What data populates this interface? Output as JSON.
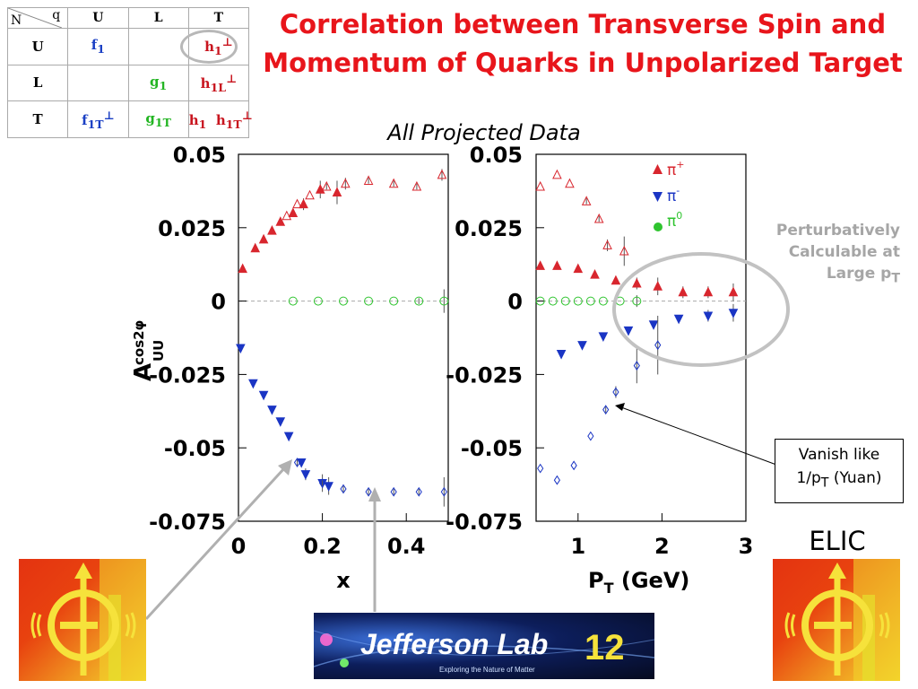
{
  "title": {
    "line1": "Correlation between Transverse Spin and",
    "line2": "Momentum of Quarks in Unpolarized Target"
  },
  "subtitle": "All Projected Data",
  "table": {
    "corner_n": "N",
    "corner_q": "q",
    "col_headers": [
      "U",
      "L",
      "T"
    ],
    "rows": [
      {
        "label": "U",
        "cells": [
          {
            "base": "f",
            "sub": "1",
            "sup": "",
            "color": "blue"
          },
          null,
          {
            "base": "h",
            "sub": "1",
            "sup": "⊥",
            "color": "red"
          }
        ]
      },
      {
        "label": "L",
        "cells": [
          null,
          {
            "base": "g",
            "sub": "1",
            "sup": "",
            "color": "green"
          },
          {
            "base": "h",
            "sub": "1L",
            "sup": "⊥",
            "color": "red"
          }
        ]
      },
      {
        "label": "T",
        "cells": [
          {
            "base": "f",
            "sub": "1T",
            "sup": "⊥",
            "color": "blue"
          },
          {
            "base": "g",
            "sub": "1T",
            "sup": "",
            "color": "green"
          },
          {
            "base": "h",
            "sub": "1",
            "sup": "",
            "extra": {
              "base": "h",
              "sub": "1T",
              "sup": "⊥"
            },
            "color": "red"
          }
        ]
      }
    ]
  },
  "annotations": {
    "perturbative": {
      "line1": "Perturbatively",
      "line2": "Calculable at",
      "line3": "Large p",
      "sub": "T"
    },
    "vanish": {
      "line1": "Vanish like",
      "line2": "1/p",
      "sub": "T",
      "tail": " (Yuan)"
    },
    "elic": "ELIC"
  },
  "logos": {
    "jlab": {
      "text": "Jefferson Lab",
      "number": "12",
      "tagline": "Exploring the Nature of Matter"
    }
  },
  "chart_data": [
    {
      "type": "scatter",
      "xlabel": "x",
      "ylabel": "A",
      "ylabel_sup": "cos2φ",
      "ylabel_sub": "UU",
      "xlim": [
        0,
        0.5
      ],
      "ylim": [
        -0.075,
        0.05
      ],
      "xticks": [
        "0",
        "0.2",
        "0.4"
      ],
      "yticks": [
        "0.05",
        "0.025",
        "0",
        "-0.025",
        "-0.05",
        "-0.075"
      ],
      "reference_line": 0,
      "series": [
        {
          "name": "π+",
          "color": "#d8262e",
          "marker": "triangle-up",
          "filled": true,
          "points": [
            [
              0.01,
              0.011
            ],
            [
              0.04,
              0.018
            ],
            [
              0.06,
              0.021
            ],
            [
              0.08,
              0.024
            ],
            [
              0.1,
              0.027
            ],
            [
              0.13,
              0.03
            ],
            [
              0.155,
              0.033
            ],
            [
              0.195,
              0.038
            ],
            [
              0.235,
              0.037
            ]
          ],
          "errors": [
            0.001,
            0.001,
            0.001,
            0.001,
            0.001,
            0.001,
            0.002,
            0.003,
            0.004
          ]
        },
        {
          "name": "π+ projected",
          "color": "#d8262e",
          "marker": "triangle-up",
          "filled": false,
          "points": [
            [
              0.115,
              0.029
            ],
            [
              0.14,
              0.033
            ],
            [
              0.17,
              0.036
            ],
            [
              0.21,
              0.039
            ],
            [
              0.255,
              0.04
            ],
            [
              0.31,
              0.041
            ],
            [
              0.37,
              0.04
            ],
            [
              0.425,
              0.039
            ],
            [
              0.485,
              0.043
            ]
          ],
          "errors": [
            0.0005,
            0.0005,
            0.0005,
            0.001,
            0.002,
            0.001,
            0.001,
            0.001,
            0.002
          ]
        },
        {
          "name": "π-",
          "color": "#1a35c4",
          "marker": "triangle-down",
          "filled": true,
          "points": [
            [
              0.005,
              -0.016
            ],
            [
              0.035,
              -0.028
            ],
            [
              0.06,
              -0.032
            ],
            [
              0.08,
              -0.037
            ],
            [
              0.1,
              -0.041
            ],
            [
              0.12,
              -0.046
            ],
            [
              0.15,
              -0.055
            ],
            [
              0.16,
              -0.059
            ],
            [
              0.2,
              -0.062
            ],
            [
              0.215,
              -0.063
            ]
          ],
          "errors": [
            0.001,
            0.001,
            0.001,
            0.001,
            0.001,
            0.001,
            0.001,
            0.002,
            0.003,
            0.003
          ]
        },
        {
          "name": "π- projected",
          "color": "#1a35c4",
          "marker": "diamond",
          "filled": false,
          "points": [
            [
              0.14,
              -0.055
            ],
            [
              0.2,
              -0.062
            ],
            [
              0.25,
              -0.064
            ],
            [
              0.31,
              -0.065
            ],
            [
              0.37,
              -0.065
            ],
            [
              0.43,
              -0.065
            ],
            [
              0.49,
              -0.065
            ]
          ],
          "errors": [
            0.001,
            0.001,
            0.001,
            0.001,
            0.001,
            0.001,
            0.005
          ]
        },
        {
          "name": "π0",
          "color": "#2fc42f",
          "marker": "circle",
          "filled": false,
          "points": [
            [
              0.13,
              0
            ],
            [
              0.19,
              0
            ],
            [
              0.25,
              0
            ],
            [
              0.31,
              0
            ],
            [
              0.37,
              0
            ],
            [
              0.43,
              0
            ],
            [
              0.49,
              0
            ]
          ],
          "errors": [
            0,
            0,
            0,
            0,
            0,
            0.001,
            0.004
          ]
        }
      ]
    },
    {
      "type": "scatter",
      "xlabel": "P",
      "xlabel_sub": "T",
      "xlabel_unit": " (GeV)",
      "xlim": [
        0.5,
        3.0
      ],
      "ylim": [
        -0.075,
        0.05
      ],
      "xticks": [
        "1",
        "2",
        "3"
      ],
      "yticks": [
        "0.05",
        "0.025",
        "0",
        "-0.025",
        "-0.05",
        "-0.075"
      ],
      "reference_line": 0,
      "legend": {
        "placement": "top-right",
        "entries": [
          {
            "label": "π",
            "sup": "+",
            "marker": "triangle-up",
            "color": "#d8262e"
          },
          {
            "label": "π",
            "sup": "-",
            "marker": "triangle-down",
            "color": "#1a35c4"
          },
          {
            "label": "π",
            "sup": "0",
            "marker": "circle-filled",
            "color": "#2fc42f"
          }
        ]
      },
      "series": [
        {
          "name": "π+",
          "color": "#d8262e",
          "marker": "triangle-up",
          "filled": true,
          "points": [
            [
              0.55,
              0.012
            ],
            [
              0.75,
              0.012
            ],
            [
              1.0,
              0.011
            ],
            [
              1.2,
              0.009
            ],
            [
              1.45,
              0.007
            ],
            [
              1.7,
              0.006
            ],
            [
              1.95,
              0.005
            ],
            [
              2.25,
              0.003
            ],
            [
              2.55,
              0.003
            ],
            [
              2.85,
              0.003
            ]
          ],
          "errors": [
            0.0005,
            0.0005,
            0.0005,
            0.001,
            0.001,
            0.002,
            0.003,
            0.002,
            0.002,
            0.003
          ]
        },
        {
          "name": "π+ projected",
          "color": "#d8262e",
          "marker": "triangle-up",
          "filled": false,
          "points": [
            [
              0.55,
              0.039
            ],
            [
              0.75,
              0.043
            ],
            [
              0.9,
              0.04
            ],
            [
              1.1,
              0.034
            ],
            [
              1.25,
              0.028
            ],
            [
              1.35,
              0.019
            ],
            [
              1.55,
              0.017
            ]
          ],
          "errors": [
            0.0005,
            0.0005,
            0.0005,
            0.001,
            0.001,
            0.002,
            0.005
          ]
        },
        {
          "name": "π-",
          "color": "#1a35c4",
          "marker": "triangle-down",
          "filled": true,
          "points": [
            [
              0.8,
              -0.018
            ],
            [
              1.05,
              -0.015
            ],
            [
              1.3,
              -0.012
            ],
            [
              1.6,
              -0.01
            ],
            [
              1.9,
              -0.008
            ],
            [
              2.2,
              -0.006
            ],
            [
              2.55,
              -0.005
            ],
            [
              2.85,
              -0.004
            ]
          ],
          "errors": [
            0.0005,
            0.0005,
            0.0005,
            0.001,
            0.001,
            0.001,
            0.002,
            0.003
          ]
        },
        {
          "name": "π- projected",
          "color": "#1a35c4",
          "marker": "diamond",
          "filled": false,
          "points": [
            [
              0.55,
              -0.057
            ],
            [
              0.75,
              -0.061
            ],
            [
              0.95,
              -0.056
            ],
            [
              1.15,
              -0.046
            ],
            [
              1.33,
              -0.037
            ],
            [
              1.45,
              -0.031
            ],
            [
              1.7,
              -0.022
            ],
            [
              1.95,
              -0.015
            ]
          ],
          "errors": [
            0.0005,
            0.0005,
            0.0005,
            0.0005,
            0.001,
            0.002,
            0.006,
            0.01
          ]
        },
        {
          "name": "π0",
          "color": "#2fc42f",
          "marker": "circle",
          "filled": false,
          "points": [
            [
              0.55,
              0
            ],
            [
              0.7,
              0
            ],
            [
              0.85,
              0
            ],
            [
              1.0,
              0
            ],
            [
              1.15,
              0
            ],
            [
              1.3,
              0
            ],
            [
              1.5,
              0
            ],
            [
              1.7,
              0
            ]
          ],
          "errors": [
            0,
            0,
            0,
            0,
            0,
            0,
            0,
            0.002
          ]
        }
      ]
    }
  ]
}
